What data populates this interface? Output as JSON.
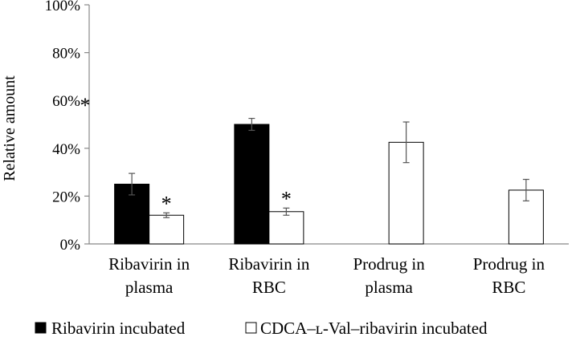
{
  "chart_data": {
    "type": "bar",
    "title": "",
    "xlabel": "",
    "ylabel": "Relative amount",
    "ylim": [
      0,
      100
    ],
    "yticks": [
      "0%",
      "20%",
      "40%",
      "60%",
      "80%",
      "100%"
    ],
    "categories": [
      [
        "Ribavirin in",
        "plasma"
      ],
      [
        "Ribavirin in",
        "RBC"
      ],
      [
        "Prodrug in",
        "plasma"
      ],
      [
        "Prodrug in",
        "RBC"
      ]
    ],
    "series": [
      {
        "name": "Ribavirin incubated",
        "color": "#000000",
        "values": [
          25,
          50,
          null,
          null
        ],
        "errors": [
          4.5,
          2.5,
          null,
          null
        ],
        "significance": [
          "",
          "",
          "",
          ""
        ]
      },
      {
        "name": "CDCA–ʟ-Val–ribavirin incubated",
        "color": "#ffffff",
        "values": [
          12,
          13.5,
          42.5,
          22.5
        ],
        "errors": [
          1,
          1.5,
          8.5,
          4.5
        ],
        "significance": [
          "*",
          "*",
          "",
          ""
        ]
      }
    ],
    "annotations": [
      "*"
    ],
    "grid": false,
    "legend": "bottom"
  }
}
